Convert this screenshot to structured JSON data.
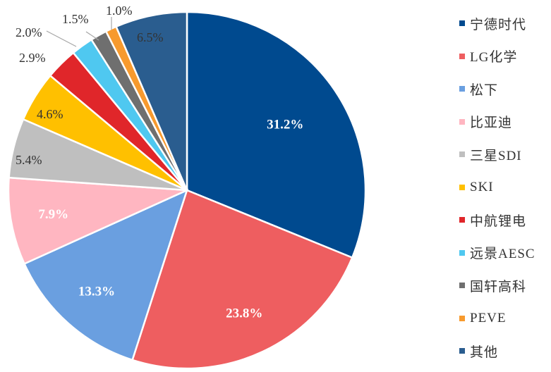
{
  "chart_data": {
    "type": "pie",
    "title": "",
    "slices": [
      {
        "name": "宁德时代",
        "value": 31.2,
        "label": "31.2%",
        "color": "#004A8F",
        "label_color": "#ffffff"
      },
      {
        "name": "LG化学",
        "value": 23.8,
        "label": "23.8%",
        "color": "#EE5E60",
        "label_color": "#ffffff"
      },
      {
        "name": "松下",
        "value": 13.3,
        "label": "13.3%",
        "color": "#6A9FE0",
        "label_color": "#ffffff"
      },
      {
        "name": "比亚迪",
        "value": 7.9,
        "label": "7.9%",
        "color": "#FFB6C1",
        "label_color": "#ffffff"
      },
      {
        "name": "三星SDI",
        "value": 5.4,
        "label": "5.4%",
        "color": "#BFBFBF",
        "label_color": "#333333"
      },
      {
        "name": "SKI",
        "value": 4.6,
        "label": "4.6%",
        "color": "#FFC000",
        "label_color": "#333333"
      },
      {
        "name": "中航锂电",
        "value": 2.9,
        "label": "2.9%",
        "color": "#E0262A",
        "label_color": "#333333"
      },
      {
        "name": "远景AESC",
        "value": 2.0,
        "label": "2.0%",
        "color": "#4FC8F0",
        "label_color": "#333333"
      },
      {
        "name": "国轩高科",
        "value": 1.5,
        "label": "1.5%",
        "color": "#6F6F6F",
        "label_color": "#333333"
      },
      {
        "name": "PEVE",
        "value": 1.0,
        "label": "1.0%",
        "color": "#F79A2E",
        "label_color": "#333333"
      },
      {
        "name": "其他",
        "value": 6.5,
        "label": "6.5%",
        "color": "#2A5D8F",
        "label_color": "#333333"
      }
    ],
    "legend_position": "right"
  }
}
